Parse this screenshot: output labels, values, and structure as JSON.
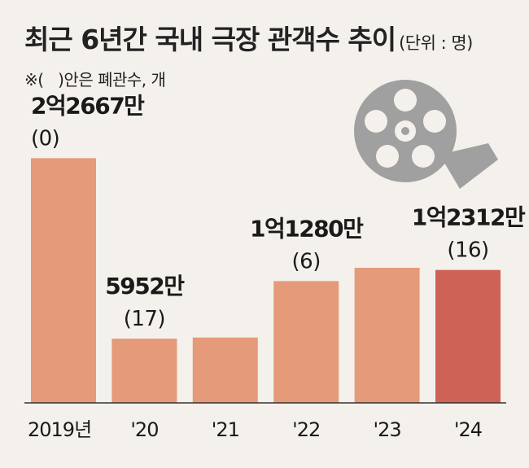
{
  "chart_data": {
    "type": "bar",
    "title": "최근 6년간 국내 극장 관객수 추이",
    "unit": "(단위 : 명)",
    "note": "※(   )안은 폐관수, 개",
    "categories": [
      "2019년",
      "'20",
      "'21",
      "'22",
      "'23",
      "'24"
    ],
    "values": [
      226670000,
      59520000,
      60530000,
      112800000,
      125140000,
      123120000
    ],
    "value_labels": [
      "2억2667만",
      "5952만",
      "",
      "1억1280만",
      "",
      "1억2312만"
    ],
    "closure_labels": [
      "(0)",
      "(17)",
      "",
      "(6)",
      "",
      "(16)"
    ],
    "ylim": [
      0,
      240000000
    ],
    "xlabel": "",
    "ylabel": ""
  },
  "colors": {
    "bar": "#e59a7a",
    "bar_highlight": "#cf6257",
    "axis": "#333333",
    "background": "#f4f1ec",
    "reel": "#a0a0a0"
  },
  "icon": "film-reel-icon"
}
